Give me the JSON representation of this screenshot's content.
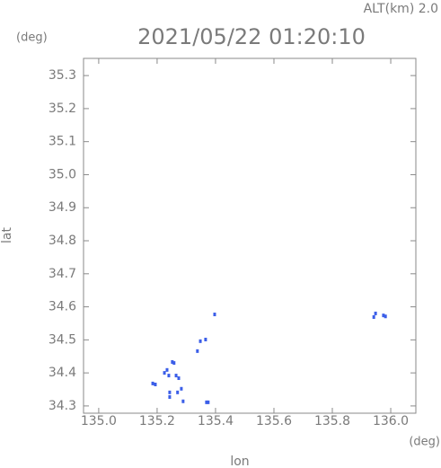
{
  "chart_data": {
    "type": "scatter",
    "title": "2021/05/22 01:20:10",
    "altitude_label": "ALT(km) 2.0",
    "x_unit": "(deg)",
    "y_unit": "(deg)",
    "x_label": "lon",
    "y_label": "lat",
    "xlim": [
      134.948,
      136.086
    ],
    "ylim": [
      34.278,
      35.352
    ],
    "xticks": [
      {
        "value": 135,
        "label": "135.0"
      },
      135.2,
      135.4,
      135.6,
      135.8,
      {
        "value": 136,
        "label": "136.0"
      }
    ],
    "yticks": [
      34.3,
      34.4,
      34.5,
      34.6,
      34.7,
      34.8,
      34.9,
      {
        "value": 35,
        "label": "35.0"
      },
      35.1,
      35.2,
      35.3
    ],
    "color": "#3b5ee8",
    "x": [
      135.185,
      135.194,
      135.225,
      135.234,
      135.24,
      135.252,
      135.258,
      135.265,
      135.274,
      135.243,
      135.243,
      135.27,
      135.283,
      135.289,
      135.369,
      135.375,
      135.338,
      135.348,
      135.366,
      135.397,
      135.942,
      135.948,
      135.975,
      135.982
    ],
    "y": [
      34.368,
      34.365,
      34.4,
      34.409,
      34.392,
      34.433,
      34.43,
      34.392,
      34.384,
      34.341,
      34.327,
      34.341,
      34.352,
      34.314,
      34.311,
      34.311,
      34.466,
      34.496,
      34.501,
      34.577,
      34.569,
      34.58,
      34.574,
      34.571
    ]
  }
}
